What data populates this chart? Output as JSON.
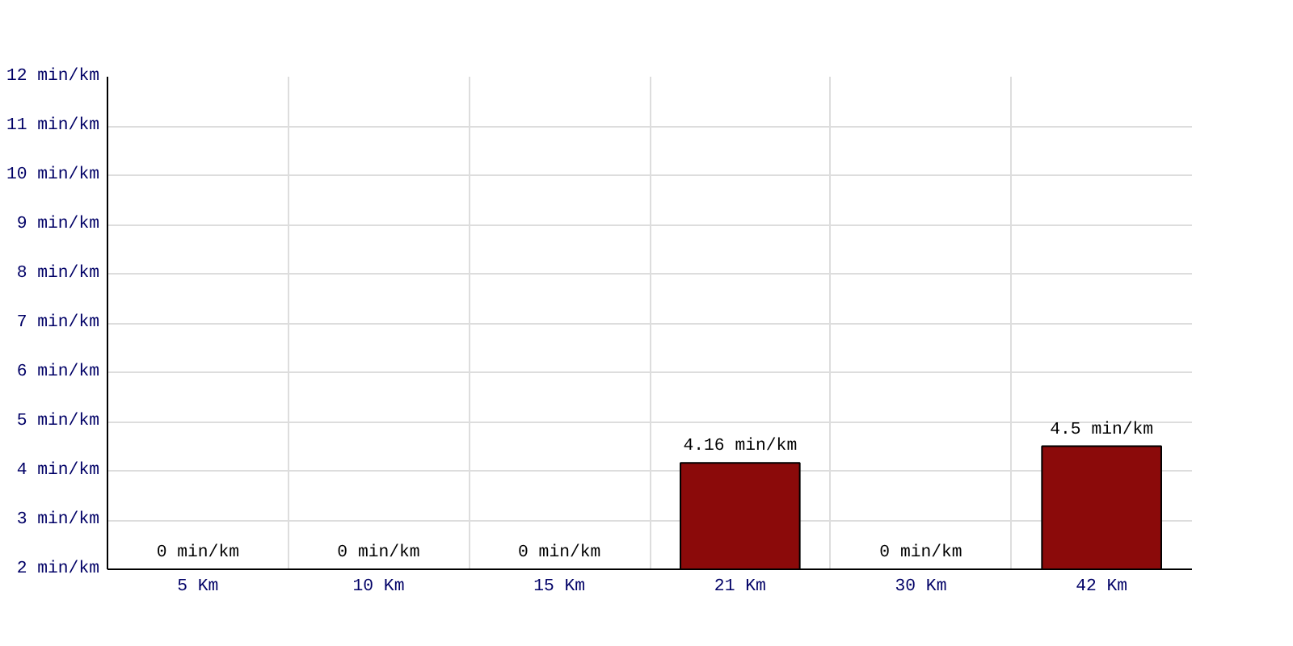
{
  "chart_data": {
    "type": "bar",
    "categories": [
      "5 Km",
      "10 Km",
      "15 Km",
      "21 Km",
      "30 Km",
      "42 Km"
    ],
    "values": [
      null,
      null,
      null,
      4.16,
      null,
      4.5
    ],
    "value_labels": [
      "0 min/km",
      "0 min/km",
      "0 min/km",
      "4.16 min/km",
      "0 min/km",
      "4.5 min/km"
    ],
    "color": "#8b0a0a",
    "ylim": [
      2,
      12
    ],
    "yticks": [
      {
        "value": 2,
        "label": "2 min/km"
      },
      {
        "value": 3,
        "label": "3 min/km"
      },
      {
        "value": 4,
        "label": "4 min/km"
      },
      {
        "value": 5,
        "label": "5 min/km"
      },
      {
        "value": 6,
        "label": "6 min/km"
      },
      {
        "value": 7,
        "label": "7 min/km"
      },
      {
        "value": 8,
        "label": "8 min/km"
      },
      {
        "value": 9,
        "label": "9 min/km"
      },
      {
        "value": 10,
        "label": "10 min/km"
      },
      {
        "value": 11,
        "label": "11 min/km"
      },
      {
        "value": 12,
        "label": "12 min/km"
      }
    ],
    "grid": true
  }
}
